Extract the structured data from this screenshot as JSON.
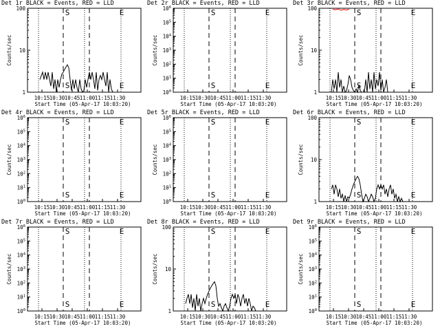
{
  "colors": {
    "events": "#000000",
    "lld": "#ff0000",
    "background": "#ffffff"
  },
  "xlabel": "Start Time (05-Apr-17 10:03:20)",
  "ylabel": "Counts/sec",
  "x_ticks": [
    "10:15",
    "10:30",
    "10:45",
    "11:00",
    "11:15",
    "11:30"
  ],
  "markers": {
    "start": "S",
    "end": "E"
  },
  "chart_data": [
    {
      "type": "line",
      "title": "Det 1r BLACK = Events, RED = LLD",
      "ylim": [
        1,
        100
      ],
      "y_scale": "log",
      "y_ticks": [
        {
          "v": 1,
          "label": "1"
        },
        {
          "v": 10,
          "label": "10"
        },
        {
          "v": 100,
          "label": "100"
        }
      ],
      "series": [
        {
          "color": "#000000",
          "points": [
            [
              0,
              2
            ],
            [
              2,
              3
            ],
            [
              3,
              2
            ],
            [
              4,
              3
            ],
            [
              5,
              2
            ],
            [
              6,
              3
            ],
            [
              7,
              2
            ],
            [
              8,
              1.4
            ],
            [
              9,
              3
            ],
            [
              10,
              1.2
            ],
            [
              11,
              2
            ],
            [
              12,
              1
            ],
            [
              13,
              2
            ],
            [
              14,
              1.3
            ],
            [
              15,
              2
            ],
            [
              16,
              2.7
            ],
            [
              17,
              3
            ],
            [
              18,
              3.5
            ],
            [
              19,
              4
            ],
            [
              20,
              4.5
            ],
            [
              21,
              3.8
            ],
            [
              22,
              2
            ],
            [
              23,
              1.1
            ],
            [
              24,
              2
            ],
            [
              25,
              1.2
            ],
            [
              26,
              2
            ],
            [
              27,
              1.3
            ],
            [
              28,
              1
            ],
            [
              29,
              2
            ],
            [
              30,
              1.2
            ],
            [
              31,
              1
            ],
            [
              32,
              1.1
            ],
            [
              33,
              2
            ],
            [
              34,
              1.3
            ],
            [
              35,
              2
            ],
            [
              36,
              3
            ],
            [
              37,
              2
            ],
            [
              38,
              3
            ],
            [
              39,
              2
            ],
            [
              40,
              1.2
            ],
            [
              41,
              3
            ],
            [
              42,
              1.1
            ],
            [
              43,
              2
            ],
            [
              44,
              2.5
            ],
            [
              45,
              2
            ],
            [
              46,
              3
            ],
            [
              47,
              2
            ],
            [
              48,
              1.4
            ],
            [
              49,
              3
            ],
            [
              50,
              1
            ],
            [
              51,
              2
            ],
            [
              52,
              1.2
            ],
            [
              53,
              1
            ]
          ]
        }
      ]
    },
    {
      "type": "line",
      "title": "Det 2r BLACK = Events, RED = LLD",
      "ylim": [
        1,
        1000000
      ],
      "y_scale": "log",
      "y_ticks": [
        {
          "v": 1,
          "label": "10^0"
        },
        {
          "v": 10,
          "label": "10^1"
        },
        {
          "v": 100,
          "label": "10^2"
        },
        {
          "v": 1000,
          "label": "10^3"
        },
        {
          "v": 10000,
          "label": "10^4"
        },
        {
          "v": 100000,
          "label": "10^5"
        },
        {
          "v": 1000000,
          "label": "10^6"
        }
      ],
      "series": []
    },
    {
      "type": "line",
      "title": "Det 3r BLACK = Events, RED = LLD",
      "ylim": [
        1,
        100
      ],
      "y_scale": "log",
      "y_ticks": [
        {
          "v": 1,
          "label": "1"
        },
        {
          "v": 10,
          "label": "10"
        },
        {
          "v": 100,
          "label": "100"
        }
      ],
      "series": [
        {
          "color": "#000000",
          "points": [
            [
              0,
              1
            ],
            [
              1,
              2
            ],
            [
              2,
              1.2
            ],
            [
              3,
              2
            ],
            [
              4,
              1
            ],
            [
              5,
              3
            ],
            [
              6,
              1.3
            ],
            [
              7,
              2
            ],
            [
              8,
              1
            ],
            [
              9,
              1.4
            ],
            [
              10,
              1
            ],
            [
              11,
              1.1
            ],
            [
              12,
              1.5
            ],
            [
              13,
              2.5
            ],
            [
              14,
              2
            ],
            [
              15,
              1.3
            ],
            [
              16,
              1.1
            ],
            [
              17,
              1
            ],
            [
              18,
              1.2
            ],
            [
              19,
              1
            ],
            [
              20,
              1.5
            ],
            [
              21,
              1.1
            ],
            [
              22,
              1
            ],
            [
              23,
              1
            ],
            [
              24,
              1
            ],
            [
              25,
              2
            ],
            [
              26,
              1
            ],
            [
              27,
              3
            ],
            [
              28,
              1.2
            ],
            [
              29,
              2
            ],
            [
              30,
              1
            ],
            [
              31,
              3
            ],
            [
              32,
              1.2
            ],
            [
              33,
              2
            ],
            [
              34,
              1.4
            ],
            [
              35,
              3
            ],
            [
              36,
              1.1
            ],
            [
              37,
              2
            ],
            [
              38,
              1
            ],
            [
              39,
              1.3
            ],
            [
              40,
              2
            ],
            [
              41,
              1
            ]
          ]
        },
        {
          "color": "#ff0000",
          "points": [
            [
              1,
              95
            ],
            [
              3,
              92
            ],
            [
              5,
              96
            ],
            [
              7,
              90
            ],
            [
              9,
              94
            ],
            [
              11,
              91
            ],
            [
              13,
              95
            ]
          ]
        }
      ]
    },
    {
      "type": "line",
      "title": "Det 4r BLACK = Events, RED = LLD",
      "ylim": [
        1,
        1000000
      ],
      "y_scale": "log",
      "y_ticks": [
        {
          "v": 1,
          "label": "10^0"
        },
        {
          "v": 10,
          "label": "10^1"
        },
        {
          "v": 100,
          "label": "10^2"
        },
        {
          "v": 1000,
          "label": "10^3"
        },
        {
          "v": 10000,
          "label": "10^4"
        },
        {
          "v": 100000,
          "label": "10^5"
        },
        {
          "v": 1000000,
          "label": "10^6"
        }
      ],
      "series": []
    },
    {
      "type": "line",
      "title": "Det 5r BLACK = Events, RED = LLD",
      "ylim": [
        1,
        1000000
      ],
      "y_scale": "log",
      "y_ticks": [
        {
          "v": 1,
          "label": "10^0"
        },
        {
          "v": 10,
          "label": "10^1"
        },
        {
          "v": 100,
          "label": "10^2"
        },
        {
          "v": 1000,
          "label": "10^3"
        },
        {
          "v": 10000,
          "label": "10^4"
        },
        {
          "v": 100000,
          "label": "10^5"
        },
        {
          "v": 1000000,
          "label": "10^6"
        }
      ],
      "series": []
    },
    {
      "type": "line",
      "title": "Det 6r BLACK = Events, RED = LLD",
      "ylim": [
        1,
        100
      ],
      "y_scale": "log",
      "y_ticks": [
        {
          "v": 1,
          "label": "1"
        },
        {
          "v": 10,
          "label": "10"
        },
        {
          "v": 100,
          "label": "100"
        }
      ],
      "series": [
        {
          "color": "#000000",
          "points": [
            [
              0,
              2
            ],
            [
              1,
              2.5
            ],
            [
              2,
              1.5
            ],
            [
              3,
              2.5
            ],
            [
              4,
              2
            ],
            [
              5,
              1.3
            ],
            [
              6,
              2
            ],
            [
              7,
              1.2
            ],
            [
              8,
              1.5
            ],
            [
              9,
              1
            ],
            [
              10,
              1.4
            ],
            [
              11,
              1
            ],
            [
              12,
              1.3
            ],
            [
              13,
              1.2
            ],
            [
              14,
              1.5
            ],
            [
              15,
              2
            ],
            [
              16,
              2.5
            ],
            [
              17,
              3
            ],
            [
              18,
              3.5
            ],
            [
              19,
              4
            ],
            [
              20,
              3.5
            ],
            [
              21,
              2.5
            ],
            [
              22,
              1.5
            ],
            [
              23,
              1
            ],
            [
              24,
              1.2
            ],
            [
              25,
              1.5
            ],
            [
              26,
              1.3
            ],
            [
              27,
              1
            ],
            [
              28,
              1.2
            ],
            [
              29,
              1.5
            ],
            [
              30,
              1.3
            ],
            [
              31,
              1
            ],
            [
              32,
              1.2
            ],
            [
              33,
              2
            ],
            [
              34,
              2.5
            ],
            [
              35,
              2
            ],
            [
              36,
              2.5
            ],
            [
              37,
              2
            ],
            [
              38,
              2.5
            ],
            [
              39,
              1.5
            ],
            [
              40,
              2
            ],
            [
              41,
              1.3
            ],
            [
              42,
              2
            ],
            [
              43,
              2.5
            ],
            [
              44,
              1.5
            ],
            [
              45,
              2
            ],
            [
              46,
              1.2
            ],
            [
              47,
              1.5
            ],
            [
              48,
              1
            ],
            [
              49,
              1.3
            ],
            [
              50,
              1
            ],
            [
              51,
              1.2
            ],
            [
              52,
              1
            ]
          ]
        }
      ]
    },
    {
      "type": "line",
      "title": "Det 7r BLACK = Events, RED = LLD",
      "ylim": [
        1,
        1000000
      ],
      "y_scale": "log",
      "y_ticks": [
        {
          "v": 1,
          "label": "10^0"
        },
        {
          "v": 10,
          "label": "10^1"
        },
        {
          "v": 100,
          "label": "10^2"
        },
        {
          "v": 1000,
          "label": "10^3"
        },
        {
          "v": 10000,
          "label": "10^4"
        },
        {
          "v": 100000,
          "label": "10^5"
        },
        {
          "v": 1000000,
          "label": "10^6"
        }
      ],
      "series": []
    },
    {
      "type": "line",
      "title": "Det 8r BLACK = Events, RED = LLD",
      "ylim": [
        1,
        100
      ],
      "y_scale": "log",
      "y_ticks": [
        {
          "v": 1,
          "label": "1"
        },
        {
          "v": 10,
          "label": "10"
        },
        {
          "v": 100,
          "label": "100"
        }
      ],
      "series": [
        {
          "color": "#000000",
          "points": [
            [
              0,
              1.5
            ],
            [
              1,
              2
            ],
            [
              2,
              2.5
            ],
            [
              3,
              1.5
            ],
            [
              4,
              2.5
            ],
            [
              5,
              1.2
            ],
            [
              6,
              2
            ],
            [
              7,
              1
            ],
            [
              8,
              2.5
            ],
            [
              9,
              1.3
            ],
            [
              10,
              2
            ],
            [
              11,
              1
            ],
            [
              12,
              1.5
            ],
            [
              13,
              2
            ],
            [
              14,
              1.5
            ],
            [
              15,
              2
            ],
            [
              16,
              2.5
            ],
            [
              17,
              3
            ],
            [
              18,
              3.5
            ],
            [
              19,
              4
            ],
            [
              20,
              4.5
            ],
            [
              21,
              5
            ],
            [
              22,
              4
            ],
            [
              23,
              2
            ],
            [
              24,
              1.3
            ],
            [
              25,
              1.5
            ],
            [
              26,
              1.2
            ],
            [
              27,
              1
            ],
            [
              28,
              1.3
            ],
            [
              29,
              1.5
            ],
            [
              30,
              1.2
            ],
            [
              31,
              1
            ],
            [
              32,
              1.3
            ],
            [
              33,
              2
            ],
            [
              34,
              2.5
            ],
            [
              35,
              2
            ],
            [
              36,
              2.5
            ],
            [
              37,
              1.5
            ],
            [
              38,
              2.5
            ],
            [
              39,
              2
            ],
            [
              40,
              1.3
            ],
            [
              41,
              2
            ],
            [
              42,
              2.5
            ],
            [
              43,
              1.5
            ],
            [
              44,
              2
            ],
            [
              45,
              1.3
            ],
            [
              46,
              2
            ],
            [
              47,
              1.5
            ],
            [
              48,
              1
            ],
            [
              49,
              1.3
            ],
            [
              50,
              1.2
            ],
            [
              51,
              1
            ]
          ]
        }
      ]
    },
    {
      "type": "line",
      "title": "Det 9r BLACK = Events, RED = LLD",
      "ylim": [
        1,
        1000000
      ],
      "y_scale": "log",
      "y_ticks": [
        {
          "v": 1,
          "label": "10^0"
        },
        {
          "v": 10,
          "label": "10^1"
        },
        {
          "v": 100,
          "label": "10^2"
        },
        {
          "v": 1000,
          "label": "10^3"
        },
        {
          "v": 10000,
          "label": "10^4"
        },
        {
          "v": 100000,
          "label": "10^5"
        },
        {
          "v": 1000000,
          "label": "10^6"
        }
      ],
      "series": []
    }
  ]
}
